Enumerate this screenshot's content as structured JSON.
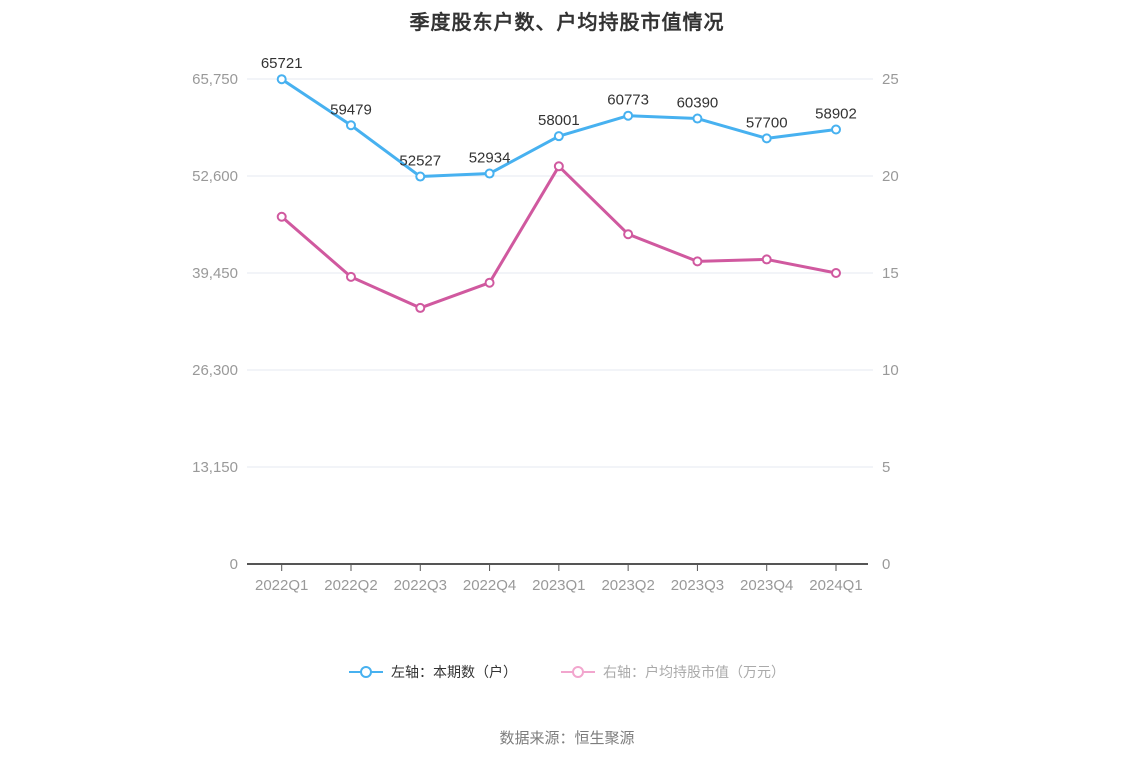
{
  "title": "季度股东户数、户均持股市值情况",
  "source": "数据来源：恒生聚源",
  "chart_data": {
    "type": "line",
    "categories": [
      "2022Q1",
      "2022Q2",
      "2022Q3",
      "2022Q4",
      "2023Q1",
      "2023Q2",
      "2023Q3",
      "2023Q4",
      "2024Q1"
    ],
    "series": [
      {
        "name": "左轴：本期数（户）",
        "axis": "left",
        "color": "#47b1f0",
        "show_labels": true,
        "values": [
          65721,
          59479,
          52527,
          52934,
          58001,
          60773,
          60390,
          57700,
          58902
        ]
      },
      {
        "name": "右轴：户均持股市值（万元）",
        "axis": "right",
        "color": "#d0599f",
        "show_labels": false,
        "values": [
          17.9,
          14.8,
          13.2,
          14.5,
          20.5,
          17.0,
          15.6,
          15.7,
          15.0
        ]
      }
    ],
    "left_axis": {
      "min": 0,
      "max": 65750,
      "ticks": [
        "0",
        "13,150",
        "26,300",
        "39,450",
        "52,600",
        "65,750"
      ]
    },
    "right_axis": {
      "min": 0,
      "max": 25,
      "ticks": [
        "0",
        "5",
        "10",
        "15",
        "20",
        "25"
      ]
    },
    "grid": true,
    "legend_position": "bottom"
  },
  "legend": {
    "items": [
      {
        "label": "左轴：本期数（户）",
        "icon_color": "#47b1f0",
        "text_color": "#333333"
      },
      {
        "label": "右轴：户均持股市值（万元）",
        "icon_color": "#f2a6ce",
        "text_color": "#aaaaaa"
      }
    ]
  },
  "colors": {
    "grid_line": "#e4e8f1",
    "axis_line": "#555555",
    "axis_text": "#999999",
    "data_label": "#333333",
    "title_text": "#333333"
  }
}
